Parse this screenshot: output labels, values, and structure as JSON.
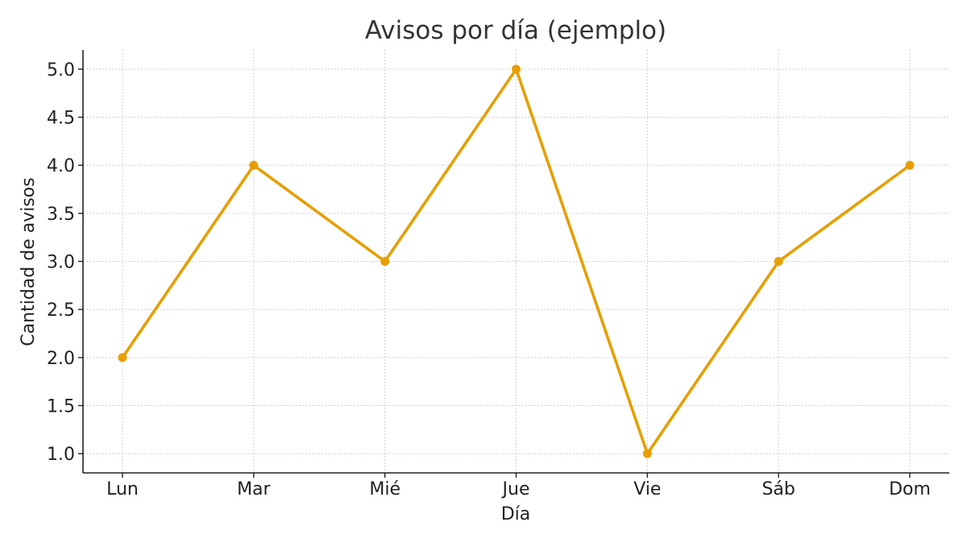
{
  "chart_data": {
    "type": "line",
    "title": "Avisos por día (ejemplo)",
    "xlabel": "Día",
    "ylabel": "Cantidad de avisos",
    "categories": [
      "Lun",
      "Mar",
      "Mié",
      "Jue",
      "Vie",
      "Sáb",
      "Dom"
    ],
    "series": [
      {
        "values": [
          2,
          4,
          3,
          5,
          1,
          3,
          4
        ],
        "color": "#E69F00"
      }
    ],
    "ylim": [
      0.8,
      5.2
    ],
    "yticks": [
      1.0,
      1.5,
      2.0,
      2.5,
      3.0,
      3.5,
      4.0,
      4.5,
      5.0
    ],
    "ytick_labels": [
      "1.0",
      "1.5",
      "2.0",
      "2.5",
      "3.0",
      "3.5",
      "4.0",
      "4.5",
      "5.0"
    ],
    "grid": true,
    "marker": "circle"
  }
}
